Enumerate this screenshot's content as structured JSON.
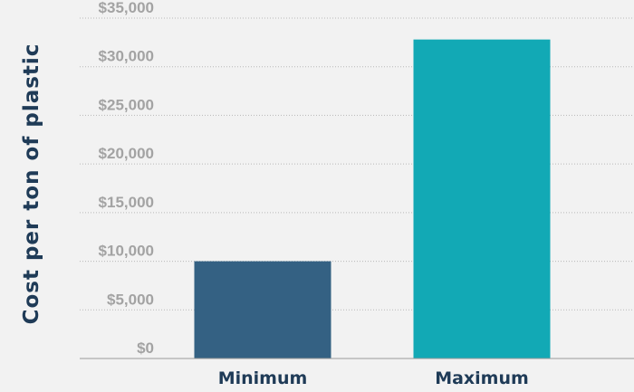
{
  "chart_data": {
    "type": "bar",
    "title": "",
    "xlabel": "",
    "ylabel": "Cost per ton of plastic",
    "categories": [
      "Minimum",
      "Maximum"
    ],
    "values": [
      10000,
      32800
    ],
    "bar_colors": [
      "#346183",
      "#12a9b5"
    ],
    "ylim": [
      0,
      35000
    ],
    "y_ticks": [
      0,
      5000,
      10000,
      15000,
      20000,
      25000,
      30000,
      35000
    ],
    "y_tick_labels": [
      "$0",
      "$5,000",
      "$10,000",
      "$15,000",
      "$20,000",
      "$25,000",
      "$30,000",
      "$35,000"
    ],
    "grid": true,
    "legend": "none"
  }
}
